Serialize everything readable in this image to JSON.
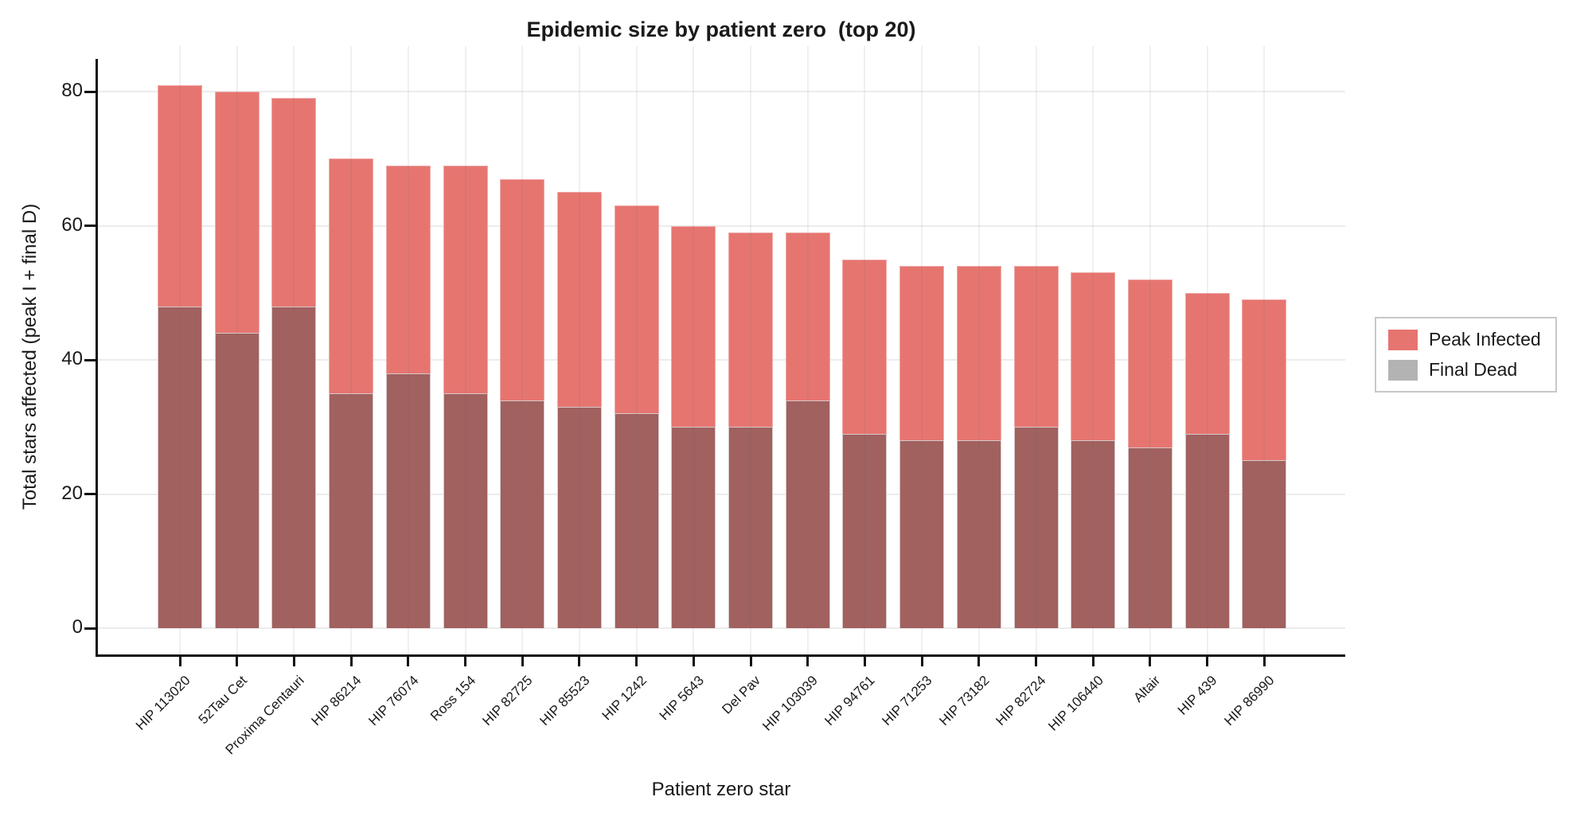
{
  "chart_data": {
    "type": "bar",
    "subtype": "overlaid-from-zero",
    "title": "Epidemic size by patient zero  (top 20)",
    "xlabel": "Patient zero star",
    "ylabel": "Total stars affected (peak I + final D)",
    "ylim": [
      0,
      85
    ],
    "yticks": [
      0,
      20,
      40,
      60,
      80
    ],
    "grid": true,
    "legend_position": "right-outside",
    "background_color": "#ffffff",
    "categories": [
      "HIP 113020",
      "52Tau Cet",
      "Proxima Centauri",
      "HIP 86214",
      "HIP 76074",
      "Ross 154",
      "HIP 82725",
      "HIP 85523",
      "HIP 1242",
      "HIP 5643",
      "Del Pav",
      "HIP 103039",
      "HIP 94761",
      "HIP 71253",
      "HIP 73182",
      "HIP 82724",
      "HIP 106440",
      "Altair",
      "HIP 439",
      "HIP 86990"
    ],
    "series": [
      {
        "name": "Peak Infected",
        "color": "#E67570",
        "values": [
          81,
          80,
          79,
          70,
          69,
          69,
          67,
          65,
          63,
          60,
          59,
          59,
          55,
          54,
          54,
          54,
          53,
          52,
          50,
          49
        ]
      },
      {
        "name": "Final Dead",
        "color": "#B3B3B3",
        "overlap_color": "#A0615F",
        "values": [
          48,
          44,
          48,
          35,
          38,
          35,
          34,
          33,
          32,
          30,
          30,
          34,
          29,
          28,
          28,
          30,
          28,
          27,
          29,
          25
        ]
      }
    ],
    "note": "Gray 'Final Dead' bars are drawn from zero over the red bars; the overlapping lower region renders as dark brown-red."
  }
}
